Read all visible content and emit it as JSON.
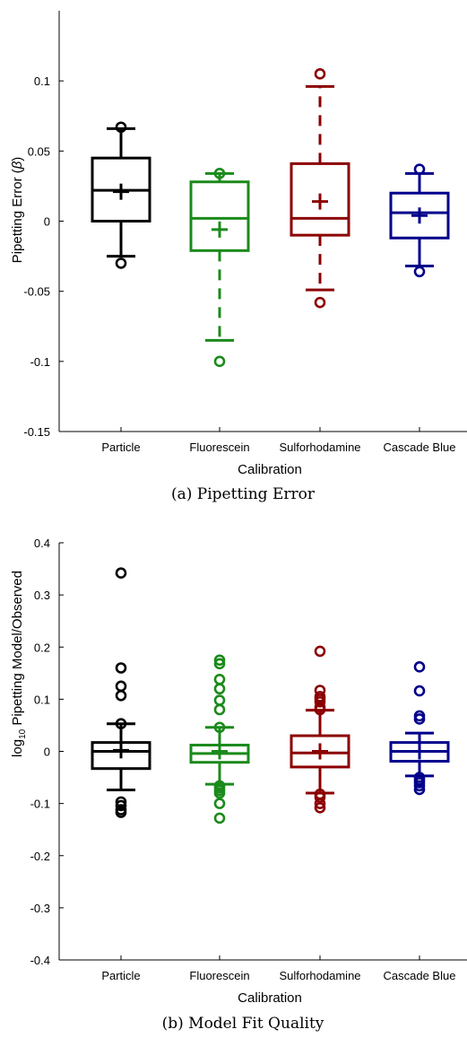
{
  "chart_data": [
    {
      "type": "box",
      "caption": "(a) Pipetting Error",
      "xlabel": "Calibration",
      "ylabel": "Pipetting Error (β)",
      "ylim": [
        -0.15,
        0.15
      ],
      "yticks": [
        "-0.15",
        "-0.1",
        "-0.05",
        "0",
        "0.05",
        "0.1"
      ],
      "ytick_values": [
        -0.15,
        -0.1,
        -0.05,
        0,
        0.05,
        0.1
      ],
      "categories": [
        "Particle",
        "Fluorescein",
        "Sulforhodamine",
        "Cascade Blue"
      ],
      "colors": [
        "#000000",
        "#1b8a1b",
        "#8b0000",
        "#00008b"
      ],
      "dashed_whiskers": [
        false,
        true,
        true,
        false
      ],
      "boxes": [
        {
          "q1": 0.0,
          "median": 0.022,
          "q3": 0.045,
          "mean": 0.021,
          "whisker_low": -0.025,
          "whisker_high": 0.066,
          "outliers": [
            -0.03,
            0.067
          ]
        },
        {
          "q1": -0.021,
          "median": 0.002,
          "q3": 0.028,
          "mean": -0.006,
          "whisker_low": -0.085,
          "whisker_high": 0.034,
          "outliers": [
            -0.1,
            0.034
          ]
        },
        {
          "q1": -0.01,
          "median": 0.002,
          "q3": 0.041,
          "mean": 0.014,
          "whisker_low": -0.049,
          "whisker_high": 0.096,
          "outliers": [
            -0.058,
            0.105
          ]
        },
        {
          "q1": -0.012,
          "median": 0.006,
          "q3": 0.02,
          "mean": 0.004,
          "whisker_low": -0.032,
          "whisker_high": 0.034,
          "outliers": [
            -0.036,
            0.037
          ]
        }
      ]
    },
    {
      "type": "box",
      "caption": "(b) Model Fit Quality",
      "xlabel": "Calibration",
      "ylabel_prefix": "log",
      "ylabel_sub": "10",
      "ylabel_rest": " Pipetting Model/Observed",
      "ylim": [
        -0.4,
        0.4
      ],
      "yticks": [
        "-0.4",
        "-0.3",
        "-0.2",
        "-0.1",
        "0",
        "0.1",
        "0.2",
        "0.3",
        "0.4"
      ],
      "ytick_values": [
        -0.4,
        -0.3,
        -0.2,
        -0.1,
        0,
        0.1,
        0.2,
        0.3,
        0.4
      ],
      "categories": [
        "Particle",
        "Fluorescein",
        "Sulforhodamine",
        "Cascade Blue"
      ],
      "colors": [
        "#000000",
        "#1b8a1b",
        "#8b0000",
        "#00008b"
      ],
      "dashed_whiskers": [
        false,
        false,
        false,
        false
      ],
      "boxes": [
        {
          "q1": -0.033,
          "median": 0.0,
          "q3": 0.017,
          "mean": 0.002,
          "whisker_low": -0.074,
          "whisker_high": 0.053,
          "outliers": [
            -0.117,
            -0.112,
            -0.104,
            -0.097,
            0.053,
            0.107,
            0.125,
            0.16,
            0.342
          ]
        },
        {
          "q1": -0.021,
          "median": -0.004,
          "q3": 0.012,
          "mean": 0.0,
          "whisker_low": -0.063,
          "whisker_high": 0.046,
          "outliers": [
            -0.128,
            -0.1,
            -0.08,
            -0.075,
            -0.07,
            -0.066,
            0.046,
            0.08,
            0.098,
            0.12,
            0.138,
            0.168,
            0.175
          ]
        },
        {
          "q1": -0.03,
          "median": -0.003,
          "q3": 0.03,
          "mean": 0.0,
          "whisker_low": -0.08,
          "whisker_high": 0.079,
          "outliers": [
            -0.108,
            -0.1,
            -0.088,
            -0.082,
            0.08,
            0.085,
            0.095,
            0.1,
            0.105,
            0.117,
            0.192
          ]
        },
        {
          "q1": -0.019,
          "median": 0.0,
          "q3": 0.017,
          "mean": 0.0,
          "whisker_low": -0.047,
          "whisker_high": 0.035,
          "outliers": [
            -0.073,
            -0.066,
            -0.06,
            -0.055,
            -0.05,
            0.062,
            0.068,
            0.116,
            0.162
          ]
        }
      ]
    }
  ]
}
